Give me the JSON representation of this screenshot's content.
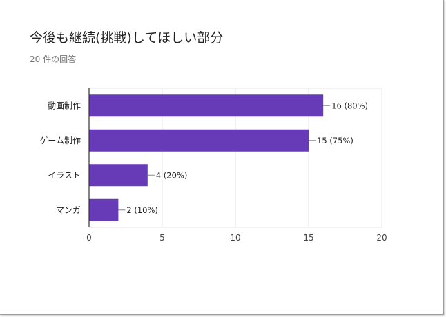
{
  "card": {
    "title": "今後も継続(挑戦)してほしい部分",
    "subtitle": "20 件の回答"
  },
  "chart_data": {
    "type": "bar",
    "orientation": "horizontal",
    "categories": [
      "動画制作",
      "ゲーム制作",
      "イラスト",
      "マンガ"
    ],
    "values": [
      16,
      15,
      4,
      2
    ],
    "data_labels": [
      "16 (80%)",
      "15 (75%)",
      "4 (20%)",
      "2 (10%)"
    ],
    "xlim": [
      0,
      20
    ],
    "xticks": [
      "0",
      "5",
      "10",
      "15",
      "20"
    ],
    "bar_color": "#673ab7",
    "grid": true
  }
}
